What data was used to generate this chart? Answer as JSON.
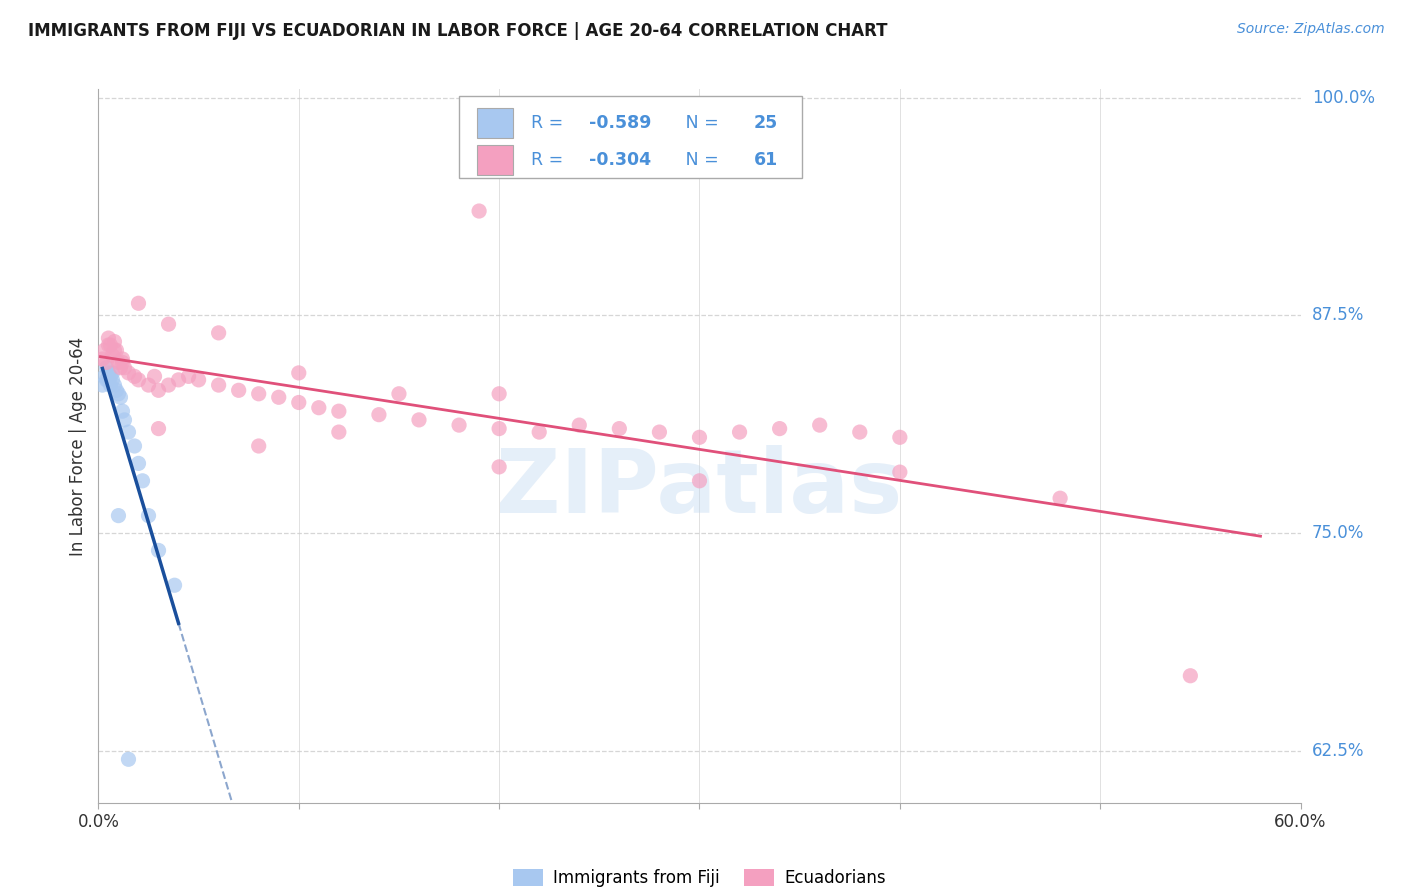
{
  "title": "IMMIGRANTS FROM FIJI VS ECUADORIAN IN LABOR FORCE | AGE 20-64 CORRELATION CHART",
  "source": "Source: ZipAtlas.com",
  "ylabel": "In Labor Force | Age 20-64",
  "xlim": [
    0.0,
    0.6
  ],
  "ylim": [
    0.595,
    1.005
  ],
  "fiji_R": -0.589,
  "fiji_N": 25,
  "ecuador_R": -0.304,
  "ecuador_N": 61,
  "fiji_color": "#A8C8F0",
  "ecuador_color": "#F4A0C0",
  "fiji_line_color": "#1A4F9C",
  "ecuador_line_color": "#E0507A",
  "watermark": "ZIPatlas",
  "background_color": "#ffffff",
  "grid_color": "#cccccc",
  "right_ytick_values": [
    1.0,
    0.875,
    0.75,
    0.625
  ],
  "right_ytick_labels": [
    "100.0%",
    "87.5%",
    "75.0%",
    "62.5%"
  ],
  "xtick_positions": [
    0.0,
    0.1,
    0.2,
    0.3,
    0.4,
    0.5,
    0.6
  ],
  "xtick_labels": [
    "0.0%",
    "",
    "",
    "",
    "",
    "",
    "60.0%"
  ],
  "legend_label_fiji": "Immigrants from Fiji",
  "legend_label_ecuador": "Ecuadorians",
  "text_color_blue": "#4A90D9",
  "text_color_dark": "#333333",
  "fiji_x": [
    0.002,
    0.003,
    0.004,
    0.004,
    0.005,
    0.005,
    0.006,
    0.006,
    0.007,
    0.007,
    0.008,
    0.009,
    0.01,
    0.011,
    0.012,
    0.013,
    0.015,
    0.018,
    0.02,
    0.022,
    0.025,
    0.03,
    0.038,
    0.01,
    0.015
  ],
  "fiji_y": [
    0.835,
    0.84,
    0.838,
    0.845,
    0.842,
    0.838,
    0.84,
    0.835,
    0.842,
    0.838,
    0.835,
    0.832,
    0.83,
    0.828,
    0.82,
    0.815,
    0.808,
    0.8,
    0.79,
    0.78,
    0.76,
    0.74,
    0.72,
    0.76,
    0.62
  ],
  "ecuador_x": [
    0.002,
    0.003,
    0.004,
    0.005,
    0.006,
    0.007,
    0.008,
    0.009,
    0.01,
    0.011,
    0.012,
    0.013,
    0.015,
    0.018,
    0.02,
    0.025,
    0.028,
    0.03,
    0.035,
    0.04,
    0.045,
    0.05,
    0.06,
    0.07,
    0.08,
    0.09,
    0.1,
    0.11,
    0.12,
    0.14,
    0.16,
    0.18,
    0.2,
    0.22,
    0.24,
    0.26,
    0.28,
    0.3,
    0.32,
    0.34,
    0.36,
    0.38,
    0.4,
    0.005,
    0.008,
    0.012,
    0.02,
    0.035,
    0.06,
    0.1,
    0.15,
    0.2,
    0.03,
    0.08,
    0.12,
    0.2,
    0.3,
    0.4,
    0.48,
    0.545,
    0.19
  ],
  "ecuador_y": [
    0.85,
    0.855,
    0.848,
    0.862,
    0.858,
    0.852,
    0.86,
    0.855,
    0.848,
    0.845,
    0.85,
    0.845,
    0.842,
    0.84,
    0.838,
    0.835,
    0.84,
    0.832,
    0.835,
    0.838,
    0.84,
    0.838,
    0.835,
    0.832,
    0.83,
    0.828,
    0.825,
    0.822,
    0.82,
    0.818,
    0.815,
    0.812,
    0.81,
    0.808,
    0.812,
    0.81,
    0.808,
    0.805,
    0.808,
    0.81,
    0.812,
    0.808,
    0.805,
    0.858,
    0.855,
    0.848,
    0.882,
    0.87,
    0.865,
    0.842,
    0.83,
    0.83,
    0.81,
    0.8,
    0.808,
    0.788,
    0.78,
    0.785,
    0.77,
    0.668,
    0.935
  ]
}
